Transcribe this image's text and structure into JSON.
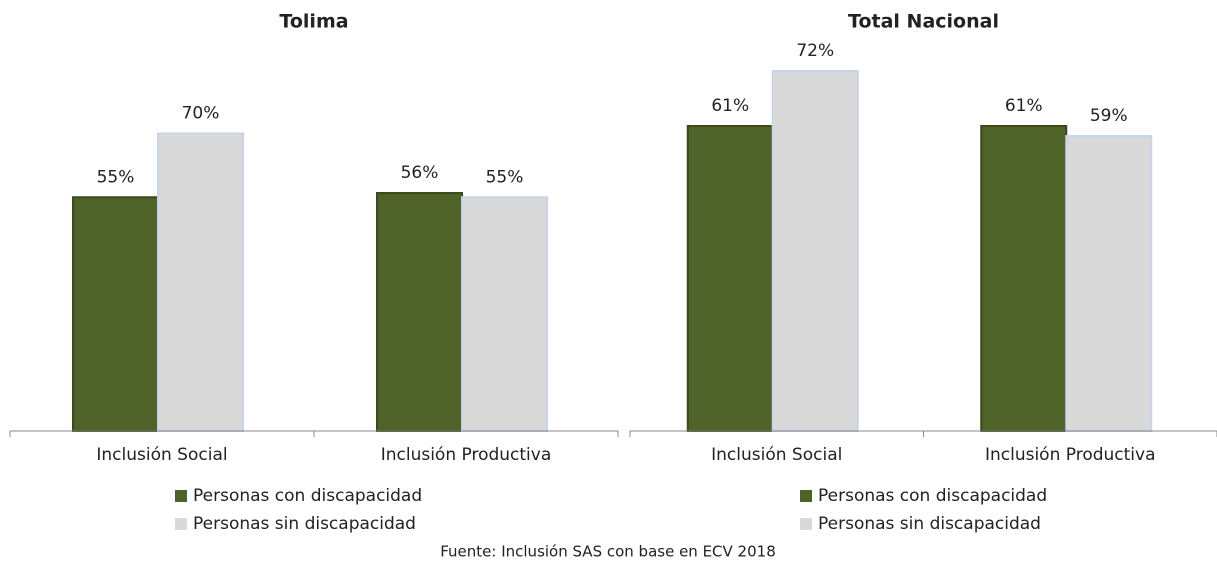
{
  "chart_data": [
    {
      "type": "bar",
      "title": "Tolima",
      "categories": [
        "Inclusión Social",
        "Inclusión Productiva"
      ],
      "series": [
        {
          "name": "Personas con discapacidad",
          "color": "#4f6228",
          "values": [
            55,
            56
          ],
          "value_labels": [
            "55%",
            "56%"
          ]
        },
        {
          "name": "Personas sin discapacidad",
          "color": "#d9d9d9",
          "values": [
            70,
            55
          ],
          "value_labels": [
            "70%",
            "55%"
          ]
        }
      ],
      "ylim": [
        0,
        80
      ]
    },
    {
      "type": "bar",
      "title": "Total Nacional",
      "categories": [
        "Inclusión Social",
        "Inclusión Productiva"
      ],
      "series": [
        {
          "name": "Personas con discapacidad",
          "color": "#4f6228",
          "values": [
            61,
            61
          ],
          "value_labels": [
            "61%",
            "61%"
          ]
        },
        {
          "name": "Personas sin discapacidad",
          "color": "#d9d9d9",
          "values": [
            72,
            59
          ],
          "value_labels": [
            "72%",
            "59%"
          ]
        }
      ],
      "ylim": [
        0,
        80
      ]
    }
  ],
  "source": "Fuente: Inclusión SAS con base en ECV 2018"
}
